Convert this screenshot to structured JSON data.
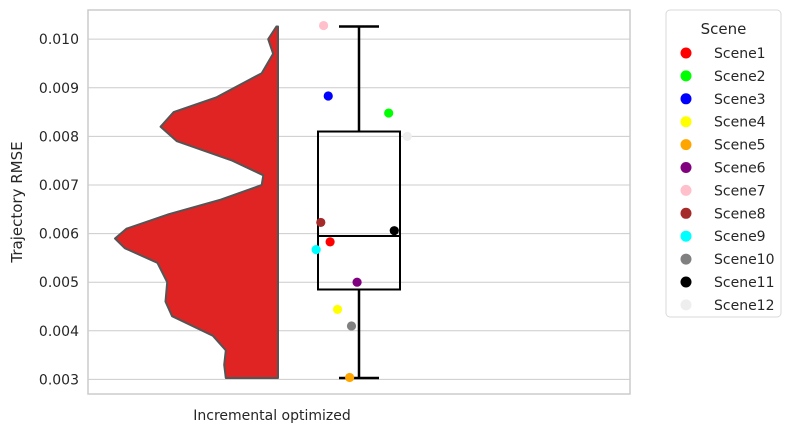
{
  "chart_data": {
    "type": "violin-box-strip",
    "xlabel": "",
    "ylabel": "Trajectory RMSE",
    "categories": [
      "Incremental optimized"
    ],
    "ylim": [
      0.0027,
      0.0106
    ],
    "yticks": [
      0.003,
      0.004,
      0.005,
      0.006,
      0.007,
      0.008,
      0.009,
      0.01
    ],
    "ytick_labels": [
      "0.003",
      "0.004",
      "0.005",
      "0.006",
      "0.007",
      "0.008",
      "0.009",
      "0.010"
    ],
    "grid": true,
    "violin": {
      "side": "left",
      "color": "#e02424",
      "edge_color": "#555555",
      "range": [
        0.00303,
        0.01026
      ],
      "density_profile": [
        [
          0.00303,
          0.32
        ],
        [
          0.0033,
          0.33
        ],
        [
          0.0036,
          0.32
        ],
        [
          0.0039,
          0.4
        ],
        [
          0.0043,
          0.65
        ],
        [
          0.0046,
          0.69
        ],
        [
          0.005,
          0.68
        ],
        [
          0.0054,
          0.74
        ],
        [
          0.0057,
          0.94
        ],
        [
          0.0059,
          1.0
        ],
        [
          0.0061,
          0.93
        ],
        [
          0.0064,
          0.67
        ],
        [
          0.0067,
          0.35
        ],
        [
          0.007,
          0.1
        ],
        [
          0.0072,
          0.09
        ],
        [
          0.0075,
          0.28
        ],
        [
          0.0079,
          0.62
        ],
        [
          0.0082,
          0.72
        ],
        [
          0.0085,
          0.64
        ],
        [
          0.0088,
          0.38
        ],
        [
          0.0093,
          0.1
        ],
        [
          0.0097,
          0.03
        ],
        [
          0.01,
          0.06
        ],
        [
          0.01026,
          0.01
        ]
      ]
    },
    "box": {
      "q1": 0.00485,
      "median": 0.00595,
      "q3": 0.0081,
      "whisker_low": 0.00303,
      "whisker_high": 0.01026
    },
    "legend": {
      "title": "Scene",
      "placement": "outside-right"
    },
    "series": [
      {
        "name": "Scene1",
        "value": 0.00583,
        "color": "#ff0000",
        "jitter": -0.3
      },
      {
        "name": "Scene2",
        "value": 0.00848,
        "color": "#00ff00",
        "jitter": 0.33
      },
      {
        "name": "Scene3",
        "value": 0.00883,
        "color": "#0000ff",
        "jitter": -0.32
      },
      {
        "name": "Scene4",
        "value": 0.00444,
        "color": "#ffff00",
        "jitter": -0.22
      },
      {
        "name": "Scene5",
        "value": 0.00304,
        "color": "#ffa500",
        "jitter": -0.09
      },
      {
        "name": "Scene6",
        "value": 0.005,
        "color": "#800080",
        "jitter": -0.01
      },
      {
        "name": "Scene7",
        "value": 0.01028,
        "color": "#ffc0cb",
        "jitter": -0.37
      },
      {
        "name": "Scene8",
        "value": 0.00623,
        "color": "#a52a2a",
        "jitter": -0.4
      },
      {
        "name": "Scene9",
        "value": 0.00567,
        "color": "#00ffff",
        "jitter": -0.45
      },
      {
        "name": "Scene10",
        "value": 0.0041,
        "color": "#808080",
        "jitter": -0.07
      },
      {
        "name": "Scene11",
        "value": 0.00606,
        "color": "#000000",
        "jitter": 0.39
      },
      {
        "name": "Scene12",
        "value": 0.008,
        "color": "#eeeeee",
        "jitter": 0.53
      }
    ]
  }
}
